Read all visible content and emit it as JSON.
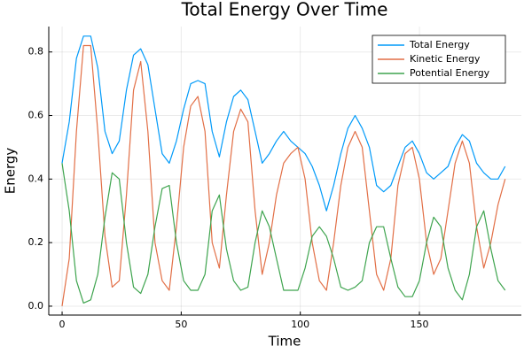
{
  "chart_data": {
    "type": "line",
    "title": "Total Energy Over Time",
    "xlabel": "Time",
    "ylabel": "Energy",
    "x": [
      0,
      3,
      6,
      9,
      12,
      15,
      18,
      21,
      24,
      27,
      30,
      33,
      36,
      39,
      42,
      45,
      48,
      51,
      54,
      57,
      60,
      63,
      66,
      69,
      72,
      75,
      78,
      81,
      84,
      87,
      90,
      93,
      96,
      99,
      102,
      105,
      108,
      111,
      114,
      117,
      120,
      123,
      126,
      129,
      132,
      135,
      138,
      141,
      144,
      147,
      150,
      153,
      156,
      159,
      162,
      165,
      168,
      171,
      174,
      177,
      180,
      183,
      186
    ],
    "series": [
      {
        "name": "Total Energy",
        "color": "#009af9",
        "values": [
          0.45,
          0.58,
          0.78,
          0.85,
          0.85,
          0.75,
          0.55,
          0.48,
          0.52,
          0.68,
          0.79,
          0.81,
          0.76,
          0.62,
          0.48,
          0.45,
          0.52,
          0.62,
          0.7,
          0.71,
          0.7,
          0.55,
          0.47,
          0.58,
          0.66,
          0.68,
          0.65,
          0.55,
          0.45,
          0.48,
          0.52,
          0.55,
          0.52,
          0.5,
          0.48,
          0.44,
          0.38,
          0.3,
          0.38,
          0.48,
          0.56,
          0.6,
          0.56,
          0.5,
          0.38,
          0.36,
          0.38,
          0.44,
          0.5,
          0.52,
          0.48,
          0.42,
          0.4,
          0.42,
          0.44,
          0.5,
          0.54,
          0.52,
          0.45,
          0.42,
          0.4,
          0.4,
          0.44
        ]
      },
      {
        "name": "Kinetic Energy",
        "color": "#e26f46",
        "values": [
          0.0,
          0.15,
          0.55,
          0.82,
          0.82,
          0.55,
          0.22,
          0.06,
          0.08,
          0.35,
          0.68,
          0.77,
          0.55,
          0.2,
          0.08,
          0.05,
          0.25,
          0.5,
          0.63,
          0.66,
          0.55,
          0.2,
          0.12,
          0.35,
          0.55,
          0.62,
          0.58,
          0.3,
          0.1,
          0.2,
          0.35,
          0.45,
          0.48,
          0.5,
          0.4,
          0.2,
          0.08,
          0.05,
          0.2,
          0.38,
          0.5,
          0.55,
          0.5,
          0.3,
          0.1,
          0.05,
          0.15,
          0.38,
          0.48,
          0.5,
          0.4,
          0.2,
          0.1,
          0.15,
          0.3,
          0.45,
          0.52,
          0.45,
          0.25,
          0.12,
          0.2,
          0.32,
          0.4
        ]
      },
      {
        "name": "Potential Energy",
        "color": "#3ea44e",
        "values": [
          0.45,
          0.3,
          0.08,
          0.01,
          0.02,
          0.1,
          0.28,
          0.42,
          0.4,
          0.2,
          0.06,
          0.04,
          0.1,
          0.25,
          0.37,
          0.38,
          0.2,
          0.08,
          0.05,
          0.05,
          0.1,
          0.3,
          0.35,
          0.18,
          0.08,
          0.05,
          0.06,
          0.2,
          0.3,
          0.25,
          0.15,
          0.05,
          0.05,
          0.05,
          0.12,
          0.22,
          0.25,
          0.22,
          0.15,
          0.06,
          0.05,
          0.06,
          0.08,
          0.2,
          0.25,
          0.25,
          0.15,
          0.06,
          0.03,
          0.03,
          0.08,
          0.2,
          0.28,
          0.25,
          0.12,
          0.05,
          0.02,
          0.1,
          0.25,
          0.3,
          0.18,
          0.08,
          0.05
        ]
      }
    ],
    "xlim": [
      -5.6,
      192.8
    ],
    "ylim": [
      -0.028,
      0.88
    ],
    "xticks": [
      0,
      50,
      100,
      150
    ],
    "yticks": [
      {
        "value": 0,
        "label": "0.0"
      },
      0.2,
      0.4,
      0.6,
      0.8
    ],
    "grid": true,
    "legend": "top-right"
  }
}
